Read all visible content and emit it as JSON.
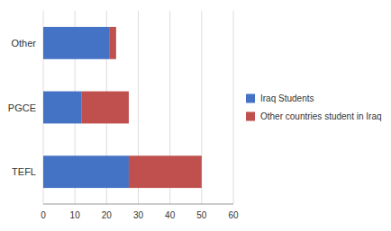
{
  "chart_data": {
    "type": "bar",
    "orientation": "horizontal",
    "stacked": true,
    "categories": [
      "TEFL",
      "PGCE",
      "Other"
    ],
    "series": [
      {
        "name": "Iraq Students",
        "color": "#4472C4",
        "values": [
          27,
          12,
          21
        ]
      },
      {
        "name": "Other countries student in Iraq",
        "color": "#C0504D",
        "values": [
          23,
          15,
          2
        ]
      }
    ],
    "xlim": [
      0,
      60
    ],
    "xticks": [
      0,
      10,
      20,
      30,
      40,
      50,
      60
    ],
    "grid": true,
    "legend": "right"
  }
}
